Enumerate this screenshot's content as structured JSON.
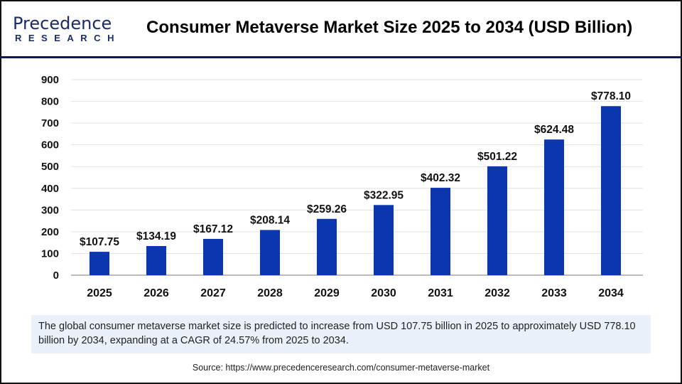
{
  "logo": {
    "line1": "Precedence",
    "line2": "RESEARCH"
  },
  "title": "Consumer Metaverse Market Size 2025 to 2034 (USD Billion)",
  "chart_data": {
    "type": "bar",
    "title": "Consumer Metaverse Market Size 2025 to 2034 (USD Billion)",
    "categories": [
      "2025",
      "2026",
      "2027",
      "2028",
      "2029",
      "2030",
      "2031",
      "2032",
      "2033",
      "2034"
    ],
    "values": [
      107.75,
      134.19,
      167.12,
      208.14,
      259.26,
      322.95,
      402.32,
      501.22,
      624.48,
      778.1
    ],
    "data_labels": [
      "$107.75",
      "$134.19",
      "$167.12",
      "$208.14",
      "$259.26",
      "$322.95",
      "$402.32",
      "$501.22",
      "$624.48",
      "$778.10"
    ],
    "yticks": [
      "0",
      "100",
      "200",
      "300",
      "400",
      "500",
      "600",
      "700",
      "800",
      "900"
    ],
    "ylim": [
      0,
      900
    ],
    "grid": true,
    "bar_color": "#0b36ad",
    "xlabel": "",
    "ylabel": ""
  },
  "info": "The global consumer metaverse market size is predicted to increase from USD 107.75 billion in 2025 to approximately USD 778.10 billion by 2034, expanding at a CAGR of 24.57% from 2025 to 2034.",
  "source": "Source: https://www.precedenceresearch.com/consumer-metaverse-market"
}
